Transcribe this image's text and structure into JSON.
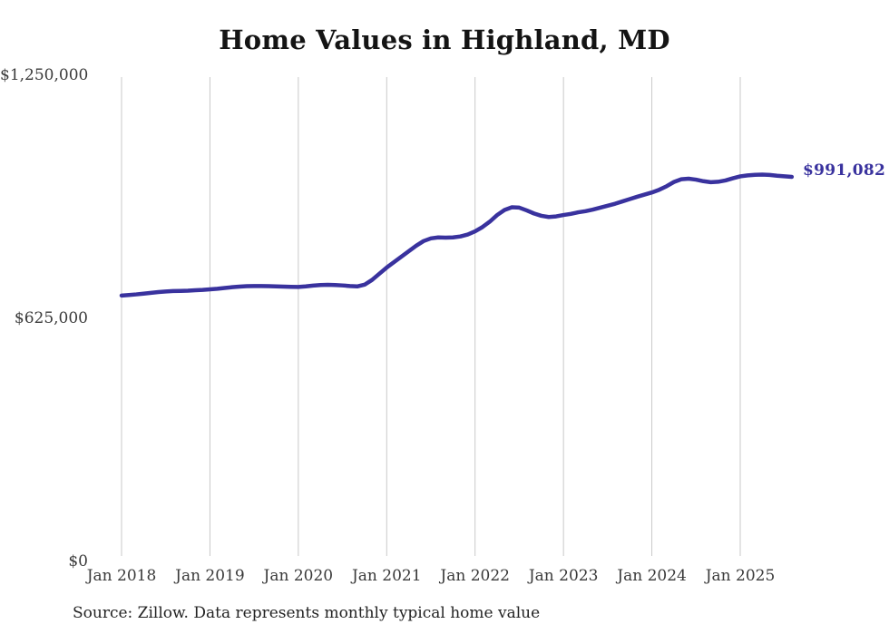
{
  "chart_data": {
    "type": "line",
    "title": "Home Values in Highland, MD",
    "source_note": "Source: Zillow. Data represents monthly typical home value",
    "series_name": "Monthly typical home value",
    "end_label": "$991,082",
    "end_value": 991082,
    "legend": "none",
    "grid": "vertical-only",
    "colors": {
      "line": "#39329e",
      "end_label": "#39329e",
      "grid": "#c9c9c9",
      "axis_text": "#3a3a3a",
      "title_text": "#141414",
      "background": "#ffffff"
    },
    "y_axis": {
      "min": 0,
      "max": 1250000,
      "ticks": [
        {
          "value": 0,
          "label": "$0"
        },
        {
          "value": 625000,
          "label": "$625,000"
        },
        {
          "value": 1250000,
          "label": "$1,250,000"
        }
      ]
    },
    "x_ticks": [
      {
        "index": 0,
        "label": "Jan 2018"
      },
      {
        "index": 12,
        "label": "Jan 2019"
      },
      {
        "index": 24,
        "label": "Jan 2020"
      },
      {
        "index": 36,
        "label": "Jan 2021"
      },
      {
        "index": 48,
        "label": "Jan 2022"
      },
      {
        "index": 60,
        "label": "Jan 2023"
      },
      {
        "index": 72,
        "label": "Jan 2024"
      },
      {
        "index": 84,
        "label": "Jan 2025"
      }
    ],
    "x": [
      "2018-01",
      "2018-02",
      "2018-03",
      "2018-04",
      "2018-05",
      "2018-06",
      "2018-07",
      "2018-08",
      "2018-09",
      "2018-10",
      "2018-11",
      "2018-12",
      "2019-01",
      "2019-02",
      "2019-03",
      "2019-04",
      "2019-05",
      "2019-06",
      "2019-07",
      "2019-08",
      "2019-09",
      "2019-10",
      "2019-11",
      "2019-12",
      "2020-01",
      "2020-02",
      "2020-03",
      "2020-04",
      "2020-05",
      "2020-06",
      "2020-07",
      "2020-08",
      "2020-09",
      "2020-10",
      "2020-11",
      "2020-12",
      "2021-01",
      "2021-02",
      "2021-03",
      "2021-04",
      "2021-05",
      "2021-06",
      "2021-07",
      "2021-08",
      "2021-09",
      "2021-10",
      "2021-11",
      "2021-12",
      "2022-01",
      "2022-02",
      "2022-03",
      "2022-04",
      "2022-05",
      "2022-06",
      "2022-07",
      "2022-08",
      "2022-09",
      "2022-10",
      "2022-11",
      "2022-12",
      "2023-01",
      "2023-02",
      "2023-03",
      "2023-04",
      "2023-05",
      "2023-06",
      "2023-07",
      "2023-08",
      "2023-09",
      "2023-10",
      "2023-11",
      "2023-12",
      "2024-01",
      "2024-02",
      "2024-03",
      "2024-04",
      "2024-05",
      "2024-06",
      "2024-07",
      "2024-08",
      "2024-09",
      "2024-10",
      "2024-11",
      "2024-12",
      "2025-01",
      "2025-02",
      "2025-03",
      "2025-04",
      "2025-05",
      "2025-06",
      "2025-07",
      "2025-08"
    ],
    "values": [
      686000,
      687500,
      689000,
      691000,
      693000,
      695000,
      696500,
      697500,
      698000,
      698500,
      699500,
      700500,
      702000,
      703500,
      705500,
      707500,
      709000,
      710000,
      710500,
      710500,
      710000,
      709500,
      709000,
      708500,
      708000,
      709500,
      711500,
      713000,
      713500,
      713000,
      712000,
      710500,
      709500,
      714000,
      726000,
      742000,
      758000,
      772000,
      786000,
      800000,
      814000,
      826000,
      833000,
      835500,
      835000,
      835500,
      838000,
      843000,
      851000,
      862000,
      876000,
      893000,
      906000,
      913000,
      912000,
      905000,
      897000,
      891000,
      888000,
      889500,
      893000,
      896000,
      900000,
      903000,
      907000,
      912000,
      917000,
      922000,
      928000,
      934000,
      940000,
      945500,
      951000,
      958000,
      967000,
      978000,
      985000,
      986500,
      984000,
      980000,
      977500,
      978500,
      982000,
      987500,
      992500,
      995000,
      996500,
      997000,
      996000,
      994000,
      992500,
      991082
    ]
  }
}
